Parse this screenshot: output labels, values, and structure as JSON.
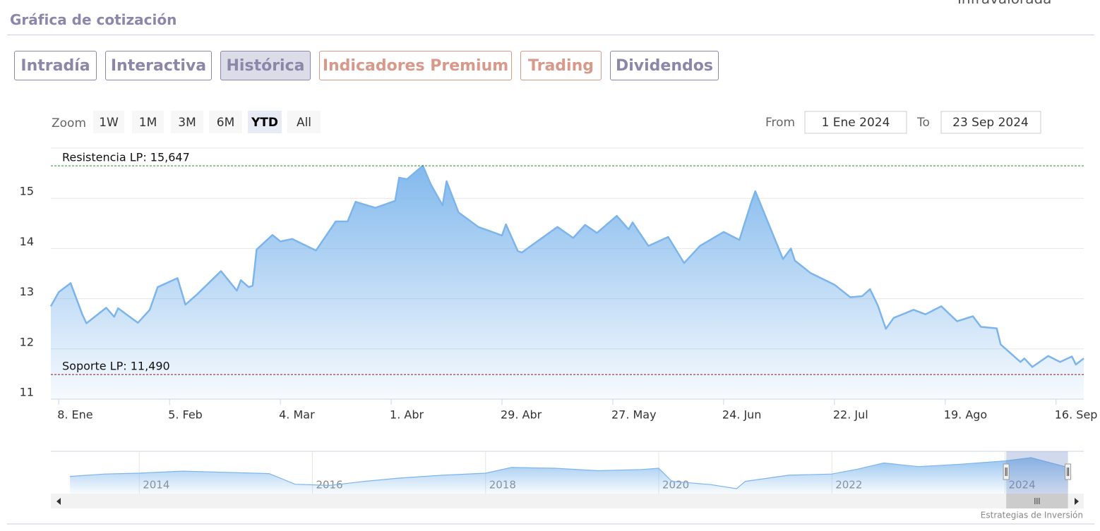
{
  "header": {
    "title": "Gráfica de cotización",
    "corner": "Infravalorada"
  },
  "tabs": [
    {
      "label": "Intradía",
      "color": "#8c87aa"
    },
    {
      "label": "Interactiva",
      "color": "#8c87aa"
    },
    {
      "label": "Histórica",
      "color": "#8c87aa"
    },
    {
      "label": "Indicadores Premium",
      "color": "#d9998a"
    },
    {
      "label": "Trading",
      "color": "#d9998a"
    },
    {
      "label": "Dividendos",
      "color": "#8c87aa"
    }
  ],
  "active_tab": 2,
  "zoom": {
    "label": "Zoom",
    "buttons": [
      "1W",
      "1M",
      "3M",
      "6M",
      "YTD",
      "All"
    ],
    "selected": 4
  },
  "range": {
    "from_label": "From",
    "from": "1 Ene 2024",
    "to_label": "To",
    "to": "23 Sep 2024"
  },
  "chart_data": {
    "type": "area",
    "color": "#7cb5ec",
    "x": [
      "2024-01-06",
      "2024-01-08",
      "2024-01-11",
      "2024-01-14",
      "2024-01-15",
      "2024-01-20",
      "2024-01-22",
      "2024-01-23",
      "2024-01-28",
      "2024-01-31",
      "2024-02-02",
      "2024-02-07",
      "2024-02-09",
      "2024-02-12",
      "2024-02-18",
      "2024-02-22",
      "2024-02-23",
      "2024-02-25",
      "2024-02-26",
      "2024-02-27",
      "2024-03-02",
      "2024-03-04",
      "2024-03-07",
      "2024-03-13",
      "2024-03-18",
      "2024-03-21",
      "2024-03-23",
      "2024-03-28",
      "2024-04-02",
      "2024-04-03",
      "2024-04-05",
      "2024-04-09",
      "2024-04-11",
      "2024-04-14",
      "2024-04-15",
      "2024-04-18",
      "2024-04-23",
      "2024-04-29",
      "2024-04-30",
      "2024-05-03",
      "2024-05-04",
      "2024-05-13",
      "2024-05-17",
      "2024-05-20",
      "2024-05-23",
      "2024-05-28",
      "2024-05-31",
      "2024-06-01",
      "2024-06-05",
      "2024-06-10",
      "2024-06-14",
      "2024-06-18",
      "2024-06-24",
      "2024-06-28",
      "2024-07-01",
      "2024-07-02",
      "2024-07-09",
      "2024-07-11",
      "2024-07-12",
      "2024-07-16",
      "2024-07-22",
      "2024-07-26",
      "2024-07-29",
      "2024-07-31",
      "2024-08-02",
      "2024-08-04",
      "2024-08-06",
      "2024-08-11",
      "2024-08-14",
      "2024-08-18",
      "2024-08-22",
      "2024-08-26",
      "2024-08-28",
      "2024-09-01",
      "2024-09-02",
      "2024-09-07",
      "2024-09-08",
      "2024-09-10",
      "2024-09-14",
      "2024-09-17",
      "2024-09-20",
      "2024-09-21",
      "2024-09-23"
    ],
    "values": [
      12.85,
      13.13,
      13.31,
      12.68,
      12.51,
      12.82,
      12.64,
      12.81,
      12.52,
      12.78,
      13.23,
      13.41,
      12.88,
      13.09,
      13.55,
      13.16,
      13.37,
      13.23,
      13.26,
      13.98,
      14.27,
      14.14,
      14.19,
      13.96,
      14.54,
      14.54,
      14.93,
      14.81,
      14.95,
      15.41,
      15.38,
      15.65,
      15.28,
      14.86,
      15.34,
      14.72,
      14.43,
      14.26,
      14.48,
      13.95,
      13.92,
      14.43,
      14.21,
      14.47,
      14.31,
      14.65,
      14.38,
      14.52,
      14.05,
      14.23,
      13.71,
      14.05,
      14.33,
      14.17,
      14.92,
      15.14,
      13.79,
      14.0,
      13.76,
      13.51,
      13.28,
      13.03,
      13.05,
      13.19,
      12.86,
      12.4,
      12.62,
      12.78,
      12.69,
      12.85,
      12.55,
      12.65,
      12.44,
      12.41,
      12.09,
      11.74,
      11.81,
      11.64,
      11.86,
      11.74,
      11.85,
      11.69,
      11.81
    ],
    "xlim": [
      "2024-01-06",
      "2024-09-23"
    ],
    "xticks": [
      {
        "value": "2024-01-08",
        "label": "8. Ene"
      },
      {
        "value": "2024-02-05",
        "label": "5. Feb"
      },
      {
        "value": "2024-03-04",
        "label": "4. Mar"
      },
      {
        "value": "2024-04-01",
        "label": "1. Abr"
      },
      {
        "value": "2024-04-29",
        "label": "29. Abr"
      },
      {
        "value": "2024-05-27",
        "label": "27. May"
      },
      {
        "value": "2024-06-24",
        "label": "24. Jun"
      },
      {
        "value": "2024-07-22",
        "label": "22. Jul"
      },
      {
        "value": "2024-08-19",
        "label": "19. Ago"
      },
      {
        "value": "2024-09-16",
        "label": "16. Sep"
      }
    ],
    "ylim": [
      11,
      16
    ],
    "yticks": [
      11,
      12,
      13,
      14,
      15
    ],
    "grid": true,
    "plot_lines": [
      {
        "label": "Resistencia LP: 15,647",
        "value": 15.647,
        "color": "#2e8b2e"
      },
      {
        "label": "Soporte LP: 11,490",
        "value": 11.49,
        "color": "#8b1a1a"
      }
    ]
  },
  "navigator": {
    "x": [
      2013.2,
      2013.6,
      2014,
      2014.5,
      2015,
      2015.5,
      2015.8,
      2016.2,
      2016.6,
      2017,
      2017.5,
      2018,
      2018.3,
      2018.8,
      2019.3,
      2019.8,
      2020,
      2020.15,
      2020.6,
      2020.9,
      2021,
      2021.5,
      2022,
      2022.3,
      2022.6,
      2023,
      2023.5,
      2024,
      2024.3,
      2024.73
    ],
    "values": [
      10.2,
      10.8,
      11,
      11.5,
      11.2,
      10.9,
      8.3,
      8,
      9,
      9.8,
      10.5,
      11,
      12.4,
      12.2,
      11.6,
      11.9,
      12.2,
      9,
      8.2,
      7.2,
      9,
      10.5,
      10.8,
      12,
      13.5,
      12.6,
      13.2,
      14,
      14.8,
      12.4
    ],
    "xlim": [
      2013.15,
      2024.73
    ],
    "ylim": [
      6,
      16
    ],
    "xticks": [
      2014,
      2016,
      2018,
      2020,
      2022,
      2024
    ],
    "selection": [
      "2024-01-06",
      "2024-09-23"
    ]
  },
  "credits": "Estrategias de Inversión"
}
